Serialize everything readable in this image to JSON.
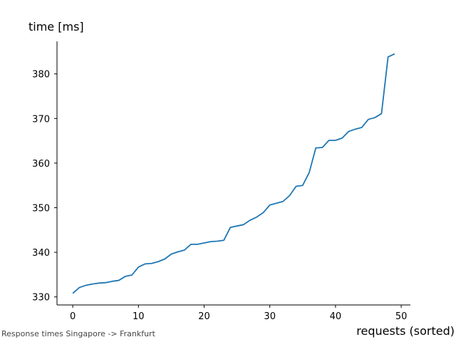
{
  "chart_data": {
    "type": "line",
    "ylabel": "time [ms]",
    "xlabel": "requests (sorted)",
    "caption": "Response times Singapore -> Frankfurt",
    "xlim": [
      -2.4,
      51.4
    ],
    "ylim": [
      328.2,
      387.3
    ],
    "xticks": [
      0,
      10,
      20,
      30,
      40,
      50
    ],
    "yticks": [
      330,
      340,
      350,
      360,
      370,
      380
    ],
    "grid": false,
    "line_color": "#1f77b4",
    "series": [
      {
        "x": [
          0,
          1,
          2,
          3,
          4,
          5,
          6,
          7,
          8,
          9,
          10,
          11,
          12,
          13,
          14,
          15,
          16,
          17,
          18,
          19,
          20,
          21,
          22,
          23,
          24,
          25,
          26,
          27,
          28,
          29,
          30,
          31,
          32,
          33,
          34,
          35,
          36,
          37,
          38,
          39,
          40,
          41,
          42,
          43,
          44,
          45,
          46,
          47,
          48,
          49
        ],
        "values": [
          330.8,
          332.1,
          332.6,
          332.9,
          333.1,
          333.2,
          333.5,
          333.7,
          334.6,
          334.9,
          336.7,
          337.4,
          337.5,
          337.9,
          338.5,
          339.6,
          340.1,
          340.5,
          341.8,
          341.8,
          342.1,
          342.4,
          342.5,
          342.7,
          345.6,
          345.9,
          346.2,
          347.2,
          347.9,
          348.9,
          350.6,
          351.0,
          351.4,
          352.7,
          354.8,
          355.0,
          357.9,
          363.4,
          363.5,
          365.1,
          365.1,
          365.6,
          367.1,
          367.6,
          368.0,
          369.8,
          370.2,
          371.1,
          383.8,
          384.5
        ]
      }
    ]
  }
}
